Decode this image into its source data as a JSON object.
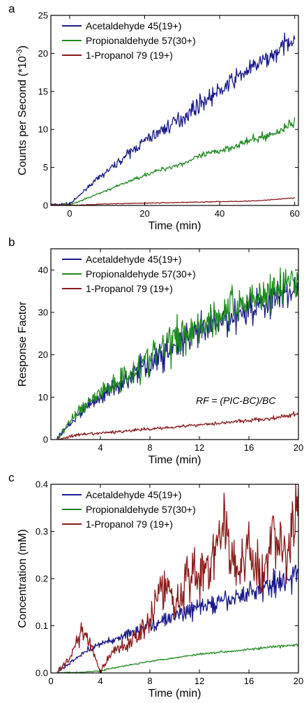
{
  "chart_data": [
    {
      "type": "line",
      "panel_label": "a",
      "xlabel": "Time (min)",
      "ylabel": "Counts per Second (*10",
      "ylabel_sup": "-3",
      "ylabel_tail": ")",
      "xlim": [
        -5,
        61
      ],
      "ylim": [
        0,
        25
      ],
      "xticks": [
        0,
        20,
        40,
        60
      ],
      "yticks": [
        0,
        5,
        10,
        15,
        20,
        25
      ],
      "legend_position": "top-left",
      "series": [
        {
          "name": "Acetaldehyde 45(19+)",
          "color": "#1a1a8c",
          "x": [
            -5,
            0,
            2,
            5,
            10,
            15,
            20,
            25,
            30,
            35,
            40,
            45,
            50,
            55,
            58,
            60
          ],
          "y": [
            0.1,
            0.2,
            1.0,
            2.5,
            4.5,
            6.5,
            8.5,
            10.0,
            11.5,
            13.5,
            15.0,
            17.0,
            18.5,
            20.0,
            21.5,
            22.0
          ]
        },
        {
          "name": "Propionaldehyde 57(30+)",
          "color": "#1f8a1f",
          "x": [
            -5,
            0,
            2,
            5,
            10,
            15,
            20,
            25,
            30,
            35,
            40,
            45,
            50,
            55,
            58,
            60
          ],
          "y": [
            0.05,
            0.1,
            0.4,
            1.0,
            2.0,
            3.0,
            4.0,
            4.8,
            5.5,
            6.5,
            7.2,
            8.0,
            8.8,
            9.5,
            10.5,
            11.0
          ]
        },
        {
          "name": "1-Propanol 79 (19+)",
          "color": "#8b1a1a",
          "x": [
            -5,
            0,
            10,
            20,
            30,
            40,
            50,
            55,
            60
          ],
          "y": [
            0.0,
            0.0,
            0.2,
            0.3,
            0.4,
            0.5,
            0.6,
            0.8,
            1.0
          ]
        }
      ]
    },
    {
      "type": "line",
      "panel_label": "b",
      "xlabel": "Time (min)",
      "ylabel": "Response Factor",
      "annotation": "RF = (PIC-BC)/BC",
      "xlim": [
        0,
        20
      ],
      "ylim": [
        0,
        45
      ],
      "xticks": [
        4,
        8,
        12,
        16,
        20
      ],
      "yticks": [
        0,
        10,
        20,
        30,
        40
      ],
      "legend_position": "top-left",
      "series": [
        {
          "name": "Acetaldehyde 45(19+)",
          "color": "#1a1a8c",
          "x": [
            0.5,
            1,
            2,
            3,
            4,
            6,
            8,
            10,
            12,
            14,
            16,
            18,
            20
          ],
          "y": [
            0,
            2,
            5,
            8,
            10,
            14,
            18,
            22,
            25,
            28,
            31,
            33,
            36
          ]
        },
        {
          "name": "Propionaldehyde 57(30+)",
          "color": "#1f8a1f",
          "x": [
            0.5,
            1,
            2,
            3,
            4,
            6,
            8,
            10,
            12,
            14,
            16,
            18,
            20
          ],
          "y": [
            0,
            2,
            6,
            9,
            11,
            15,
            19,
            24,
            27,
            30,
            33,
            35,
            38
          ]
        },
        {
          "name": "1-Propanol 79 (19+)",
          "color": "#8b1a1a",
          "x": [
            0.5,
            2,
            4,
            6,
            8,
            10,
            12,
            14,
            16,
            18,
            20
          ],
          "y": [
            0,
            1,
            1.5,
            2,
            2.5,
            3,
            3.5,
            4,
            4.5,
            5,
            6
          ]
        }
      ]
    },
    {
      "type": "line",
      "panel_label": "c",
      "xlabel": "Time (min)",
      "ylabel": "Concentration (mM)",
      "xlim": [
        0,
        20
      ],
      "ylim": [
        0,
        0.4
      ],
      "xticks": [
        0,
        4,
        8,
        12,
        16,
        20
      ],
      "yticks": [
        "0.0",
        "0.1",
        "0.2",
        "0.3",
        "0.4"
      ],
      "legend_position": "top-left",
      "series": [
        {
          "name": "Acetaldehyde 45(19+)",
          "color": "#1a1a8c",
          "x": [
            0.5,
            1,
            2,
            3,
            4,
            6,
            8,
            10,
            12,
            14,
            16,
            18,
            20
          ],
          "y": [
            0.0,
            0.01,
            0.03,
            0.05,
            0.06,
            0.08,
            0.1,
            0.12,
            0.14,
            0.15,
            0.17,
            0.19,
            0.21
          ]
        },
        {
          "name": "Propionaldehyde 57(30+)",
          "color": "#1f8a1f",
          "x": [
            0.5,
            2,
            4,
            6,
            8,
            10,
            12,
            14,
            16,
            18,
            20
          ],
          "y": [
            0.0,
            0.0,
            0.005,
            0.015,
            0.025,
            0.032,
            0.04,
            0.045,
            0.05,
            0.055,
            0.06
          ]
        },
        {
          "name": "1-Propanol 79 (19+)",
          "color": "#8b1a1a",
          "x": [
            0.5,
            1.5,
            2.5,
            3.2,
            4.0,
            4.8,
            6,
            7,
            8,
            9,
            10,
            11,
            12,
            13,
            14,
            15,
            16,
            17,
            18,
            19,
            20
          ],
          "y": [
            0.0,
            0.03,
            0.09,
            0.06,
            0.0,
            0.04,
            0.06,
            0.08,
            0.12,
            0.19,
            0.15,
            0.21,
            0.2,
            0.24,
            0.31,
            0.21,
            0.27,
            0.18,
            0.31,
            0.24,
            0.37
          ]
        }
      ]
    }
  ]
}
